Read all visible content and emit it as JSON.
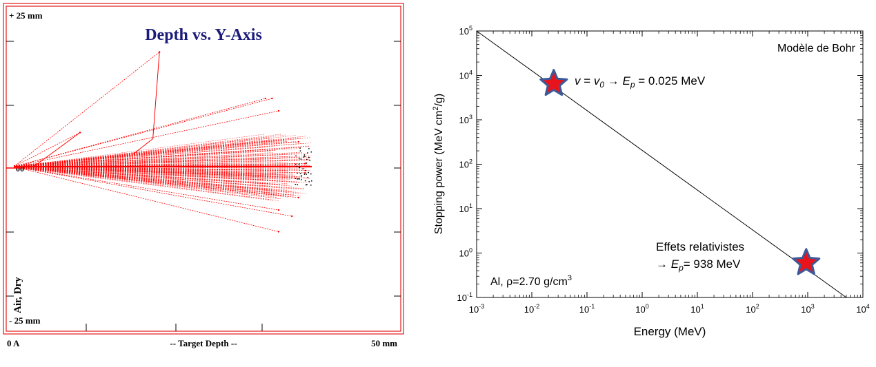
{
  "left_chart": {
    "title": "Depth vs. Y-Axis",
    "y_top_label": "+ 25 mm",
    "y_bottom_label": "- 25 mm",
    "y_zero_label": "00",
    "x_left_label": "0 A",
    "x_center_label": "-- Target Depth --",
    "x_right_label": "50 mm",
    "medium_label": "Air, Dry",
    "colors": {
      "frame": "#e31b1b",
      "title": "#1b1b7a",
      "tracks": "#ff0000",
      "end_cluster": "#000000"
    }
  },
  "chart_data": [
    {
      "type": "scatter",
      "title": "Depth vs. Y-Axis",
      "xlabel": "-- Target Depth --",
      "x_range_labels": [
        "0 A",
        "50 mm"
      ],
      "y_range_labels": [
        "+ 25 mm",
        "- 25 mm"
      ],
      "xlim": [
        0,
        50
      ],
      "ylim": [
        -25,
        25
      ],
      "series": [
        {
          "values": [
            [
              0,
              0
            ],
            [
              44,
              0.5
            ],
            [
              44,
              -1
            ],
            [
              43,
              4
            ],
            [
              43,
              -5
            ],
            [
              38,
              11
            ],
            [
              39,
              11
            ],
            [
              40,
              9
            ],
            [
              40,
              -7
            ],
            [
              40,
              -10.5
            ],
            [
              42,
              -8
            ],
            [
              10,
              5.5
            ],
            [
              22,
              18.5
            ]
          ]
        }
      ]
    },
    {
      "type": "line",
      "title": "",
      "xlabel": "Energy (MeV)",
      "ylabel": "Stopping power (MeV cm²/g)",
      "xscale": "log",
      "yscale": "log",
      "xlim": [
        0.001,
        10000
      ],
      "ylim": [
        0.1,
        100000
      ],
      "x_ticks": [
        "10⁻³",
        "10⁻²",
        "10⁻¹",
        "10⁰",
        "10¹",
        "10²",
        "10³",
        "10⁴"
      ],
      "y_ticks": [
        "10⁻¹",
        "10⁰",
        "10¹",
        "10²",
        "10³",
        "10⁴",
        "10⁵"
      ],
      "series": [
        {
          "x": [
            0.001,
            5000
          ],
          "y": [
            100000,
            0.1
          ]
        }
      ],
      "markers": [
        {
          "x": 0.025,
          "y": 6500,
          "label_v": "v",
          "label_eq": " = ",
          "label_v0": "v",
          "label_v0_sub": "0",
          "label_arrow": " → ",
          "label_E": "E",
          "label_E_sub": "p",
          "label_value": "= 0.025 MeV"
        },
        {
          "x": 938,
          "y": 0.6,
          "label_line1": "Effets relativistes",
          "label_arrow": "→ ",
          "label_E": "E",
          "label_E_sub": "p",
          "label_value": "= 938 MeV"
        }
      ],
      "annotations": {
        "model": "Modèle de Bohr",
        "material": "Al, ρ=2.70 g/cm",
        "material_sup": "3"
      },
      "colors": {
        "line": "#000000",
        "star_fill": "#e8141c",
        "star_stroke": "#3c5a9a"
      }
    }
  ]
}
